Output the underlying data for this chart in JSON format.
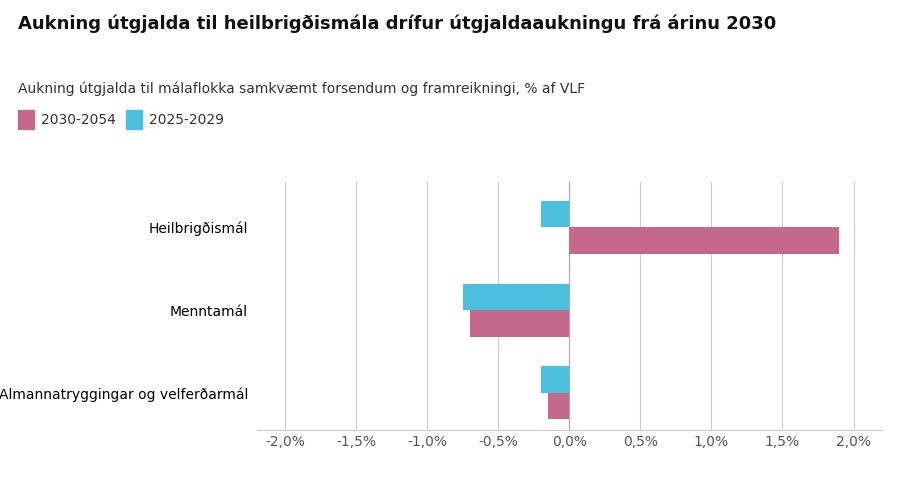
{
  "title": "Aukning útgjalda til heilbrigðismála drífur útgjaldaaukningu frá árinu 2030",
  "subtitle": "Aukning útgjalda til málaflokka samkvæmt forsendum og framreikningi, % af VLF",
  "legend_labels": [
    "2030-2054",
    "2025-2029"
  ],
  "categories": [
    "Heilbrigðismál",
    "Menntamál",
    "Almannatryggingar og velferðarmál"
  ],
  "values_2030_2054": [
    1.9,
    -0.7,
    -0.15
  ],
  "values_2025_2029": [
    -0.2,
    -0.75,
    -0.2
  ],
  "xlim": [
    -2.2,
    2.2
  ],
  "xticks": [
    -2.0,
    -1.5,
    -1.0,
    -0.5,
    0.0,
    0.5,
    1.0,
    1.5,
    2.0
  ],
  "bar_color_2030": "#c4698a",
  "bar_color_2025": "#4bbfdd",
  "background_color": "#ffffff",
  "grid_color": "#cccccc",
  "bar_height": 0.32,
  "title_fontsize": 13,
  "subtitle_fontsize": 10,
  "tick_fontsize": 10,
  "label_fontsize": 10
}
